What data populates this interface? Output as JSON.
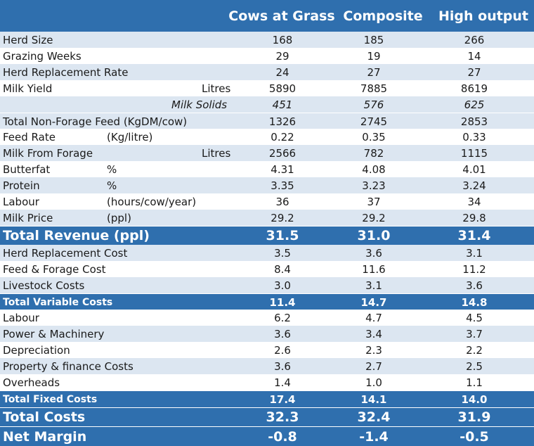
{
  "columns": [
    "Cows at Grass",
    "Composite",
    "High output"
  ],
  "rows": [
    {
      "label": "Herd Size",
      "unit": "",
      "values": [
        "168",
        "185",
        "266"
      ]
    },
    {
      "label": "Grazing Weeks",
      "unit": "",
      "values": [
        "29",
        "19",
        "14"
      ]
    },
    {
      "label": "Herd Replacement Rate",
      "unit": "",
      "values": [
        "24",
        "27",
        "27"
      ]
    },
    {
      "label": "Milk Yield",
      "unit": "Litres",
      "values": [
        "5890",
        "7885",
        "8619"
      ]
    },
    {
      "label": "",
      "unit": "Milk Solids",
      "values": [
        "451",
        "576",
        "625"
      ]
    },
    {
      "label": "Total Non-Forage Feed (KgDM/cow)",
      "unit": "",
      "values": [
        "1326",
        "2745",
        "2853"
      ]
    },
    {
      "label": "Feed Rate",
      "unit": "(Kg/litre)",
      "values": [
        "0.22",
        "0.35",
        "0.33"
      ]
    },
    {
      "label": "Milk From Forage",
      "unit": "Litres",
      "values": [
        "2566",
        "782",
        "1115"
      ]
    },
    {
      "label": "Butterfat",
      "unit": "%",
      "values": [
        "4.31",
        "4.08",
        "4.01"
      ]
    },
    {
      "label": "Protein",
      "unit": "%",
      "values": [
        "3.35",
        "3.23",
        "3.24"
      ]
    },
    {
      "label": "Labour",
      "unit": "(hours/cow/year)",
      "values": [
        "36",
        "37",
        "34"
      ]
    },
    {
      "label": "Milk Price",
      "unit": "(ppl)",
      "values": [
        "29.2",
        "29.2",
        "29.8"
      ]
    },
    {
      "label": "Total Revenue (ppl)",
      "unit": "",
      "values": [
        "31.5",
        "31.0",
        "31.4"
      ]
    },
    {
      "label": "Herd Replacement Cost",
      "unit": "",
      "values": [
        "3.5",
        "3.6",
        "3.1"
      ]
    },
    {
      "label": "Feed & Forage Cost",
      "unit": "",
      "values": [
        "8.4",
        "11.6",
        "11.2"
      ]
    },
    {
      "label": "Livestock Costs",
      "unit": "",
      "values": [
        "3.0",
        "3.1",
        "3.6"
      ]
    },
    {
      "label": "Total Variable Costs",
      "unit": "",
      "values": [
        "11.4",
        "14.7",
        "14.8"
      ]
    },
    {
      "label": "Labour",
      "unit": "",
      "values": [
        "6.2",
        "4.7",
        "4.5"
      ]
    },
    {
      "label": "Power & Machinery",
      "unit": "",
      "values": [
        "3.6",
        "3.4",
        "3.7"
      ]
    },
    {
      "label": "Depreciation",
      "unit": "",
      "values": [
        "2.6",
        "2.3",
        "2.2"
      ]
    },
    {
      "label": "Property & finance Costs",
      "unit": "",
      "values": [
        "3.6",
        "2.7",
        "2.5"
      ]
    },
    {
      "label": "Overheads",
      "unit": "",
      "values": [
        "1.4",
        "1.0",
        "1.1"
      ]
    },
    {
      "label": "Total Fixed Costs",
      "unit": "",
      "values": [
        "17.4",
        "14.1",
        "14.0"
      ]
    },
    {
      "label": "Total Costs",
      "unit": "",
      "values": [
        "32.3",
        "32.4",
        "31.9"
      ]
    },
    {
      "label": "Net Margin",
      "unit": "",
      "values": [
        "-0.8",
        "-1.4",
        "-0.5"
      ]
    }
  ],
  "colors": {
    "header_blue": "#2f6fae",
    "stripe_light": "#dce6f1",
    "white": "#ffffff"
  }
}
